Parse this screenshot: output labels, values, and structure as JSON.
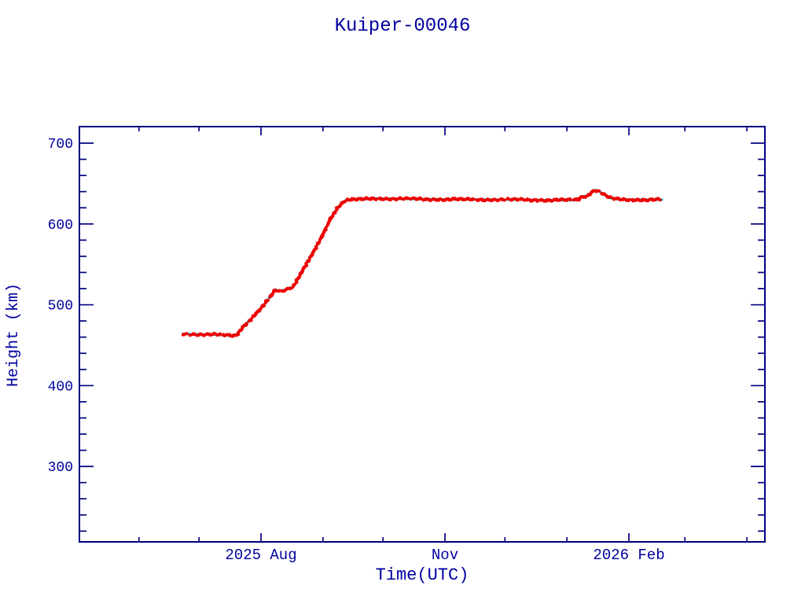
{
  "page": {
    "background": "#ffffff"
  },
  "chart_data": {
    "type": "scatter",
    "title": "Kuiper-00046",
    "xlabel": "Time(UTC)",
    "ylabel": "Height (km)",
    "text_color": "#0000a0",
    "axis_color": "#000080",
    "grid": false,
    "legend": null,
    "ylim": [
      206,
      721
    ],
    "y_major_ticks": [
      300,
      400,
      500,
      600,
      700
    ],
    "y_minor_step": 20,
    "x_day_epoch": "2025-06-01",
    "xlim_days": [
      -30,
      312
    ],
    "x_major_ticks": [
      {
        "day": 61,
        "label": "2025 Aug"
      },
      {
        "day": 153,
        "label": "Nov"
      },
      {
        "day": 245,
        "label": "2026 Feb"
      }
    ],
    "x_minor_tick_days": [
      0,
      30,
      92,
      122,
      183,
      214,
      273,
      304
    ],
    "series": [
      {
        "name": "underlay-series",
        "color": "#00d9d9",
        "style": "line"
      },
      {
        "name": "height-series",
        "color": "#ee0000",
        "style": "scatter"
      }
    ],
    "points_day_km": [
      [
        22.0,
        464.0
      ],
      [
        30.0,
        463.5
      ],
      [
        40.0,
        463.0
      ],
      [
        46.5,
        461.5
      ],
      [
        48.5,
        462.0
      ],
      [
        52.4,
        474.0
      ],
      [
        56.3,
        483.0
      ],
      [
        61.0,
        495.0
      ],
      [
        64.1,
        505.0
      ],
      [
        68.1,
        519.0
      ],
      [
        70.4,
        517.0
      ],
      [
        72.8,
        518.5
      ],
      [
        77.1,
        522.0
      ],
      [
        80.7,
        537.0
      ],
      [
        83.8,
        551.0
      ],
      [
        87.7,
        568.0
      ],
      [
        91.7,
        585.0
      ],
      [
        95.6,
        606.0
      ],
      [
        99.5,
        621.0
      ],
      [
        101.9,
        627.0
      ],
      [
        103.5,
        629.5
      ],
      [
        107.4,
        630.0
      ],
      [
        118.4,
        631.5
      ],
      [
        146.7,
        630.5
      ],
      [
        186.0,
        630.0
      ],
      [
        205.7,
        629.5
      ],
      [
        219.4,
        629.5
      ],
      [
        221.0,
        633.0
      ],
      [
        223.0,
        634.5
      ],
      [
        224.5,
        635.0
      ],
      [
        226.5,
        640.0
      ],
      [
        228.1,
        642.0
      ],
      [
        229.7,
        641.0
      ],
      [
        232.4,
        636.5
      ],
      [
        234.8,
        633.0
      ],
      [
        236.4,
        631.5
      ],
      [
        241.1,
        630.0
      ],
      [
        252.9,
        630.0
      ],
      [
        261.5,
        630.0
      ]
    ]
  }
}
